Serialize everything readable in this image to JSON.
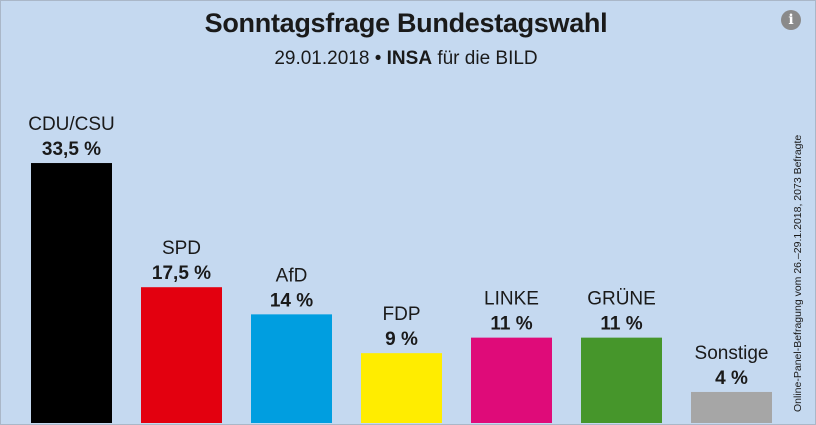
{
  "title": "Sonntagsfrage Bundestagswahl",
  "subtitle": {
    "date": "29.01.2018",
    "separator": "•",
    "institute": "INSA",
    "client": "für die BILD"
  },
  "source_note": "Online-Panel-Befragung vom 26.–29.1.2018, 2073 Befragte",
  "info_icon": "info-icon",
  "chart_data": {
    "type": "bar",
    "title": "Sonntagsfrage Bundestagswahl",
    "subtitle": "29.01.2018 • INSA für die BILD",
    "xlabel": "",
    "ylabel": "",
    "ylim": [
      0,
      35
    ],
    "grid": false,
    "legend": "none",
    "categories": [
      "CDU/CSU",
      "SPD",
      "AfD",
      "FDP",
      "LINKE",
      "GRÜNE",
      "Sonstige"
    ],
    "values": [
      33.5,
      17.5,
      14,
      9,
      11,
      11,
      4
    ],
    "value_labels": [
      "33,5 %",
      "17,5 %",
      "14 %",
      "9 %",
      "11 %",
      "11 %",
      "4 %"
    ],
    "colors": [
      "#000000",
      "#e3000f",
      "#009ee0",
      "#ffed00",
      "#df0b79",
      "#46962b",
      "#a6a6a6"
    ]
  }
}
